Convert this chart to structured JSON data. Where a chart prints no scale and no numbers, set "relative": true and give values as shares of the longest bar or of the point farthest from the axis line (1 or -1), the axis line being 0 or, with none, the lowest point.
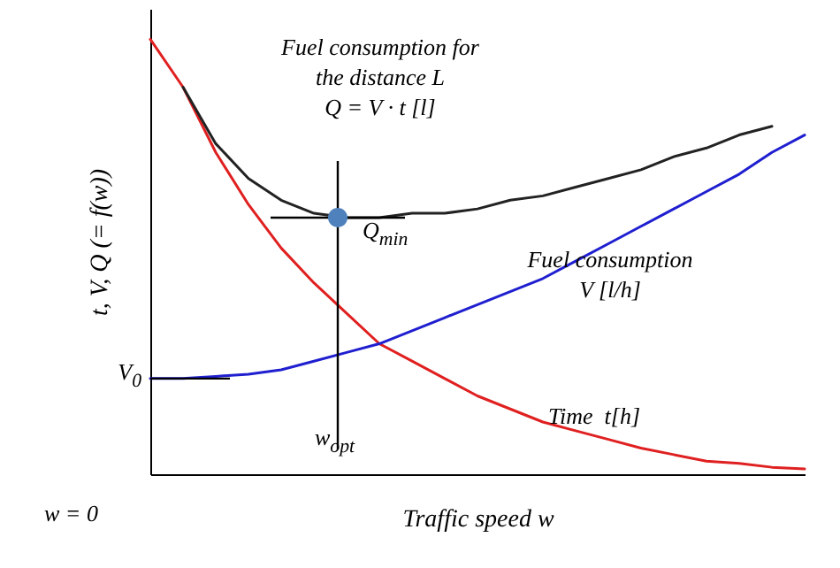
{
  "chart_data": {
    "type": "line",
    "relative": true,
    "xlabel": "Traffic speed  w",
    "ylabel": "t, V, Q (= f(w))",
    "categories": [
      null,
      null,
      null,
      null,
      null,
      null,
      null,
      null,
      null,
      null,
      null,
      null,
      null,
      null,
      null,
      null,
      null,
      null,
      null,
      null,
      null
    ],
    "series": [
      {
        "color": "#e02020",
        "values": [
          1.0,
          0.89,
          0.74,
          0.62,
          0.52,
          0.44,
          0.37,
          0.3,
          0.26,
          0.22,
          0.18,
          0.15,
          0.12,
          0.1,
          0.08,
          0.06,
          0.045,
          0.03,
          0.025,
          0.016,
          0.012
        ]
      },
      {
        "color": "#1f1fd0",
        "values": [
          0.22,
          0.22,
          0.225,
          0.23,
          0.24,
          0.26,
          0.28,
          0.3,
          0.33,
          0.36,
          0.39,
          0.42,
          0.45,
          0.49,
          0.53,
          0.57,
          0.61,
          0.65,
          0.69,
          0.74,
          0.78
        ]
      },
      {
        "color": "#222222",
        "values": [
          null,
          0.89,
          0.76,
          0.68,
          0.63,
          0.6,
          0.59,
          0.59,
          0.6,
          0.6,
          0.61,
          0.63,
          0.64,
          0.66,
          0.68,
          0.7,
          0.73,
          0.75,
          0.78,
          0.8,
          null
        ]
      }
    ],
    "annotations": [
      "Fuel consumption for\nthe distance L\nQ = V · t [l]",
      "Fuel consumption\nV [l/h]",
      "Time  t[h]",
      "Q$_{min}$",
      "w$_{opt}$",
      "V$_{0}$",
      "w = 0"
    ]
  }
}
